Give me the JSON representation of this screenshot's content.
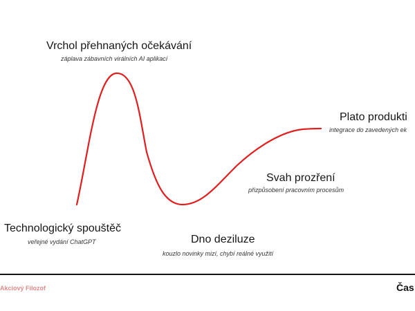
{
  "diagram": {
    "curve_color": "#e01e1e",
    "phases": {
      "peak": {
        "title": "Vrchol přehnaných očekávání",
        "subtitle": "záplava zábavních virálních AI aplikací"
      },
      "plateau": {
        "title": "Plato produkti",
        "subtitle": "integrace do zavedených ek"
      },
      "slope": {
        "title": "Svah prozření",
        "subtitle": "přizpůsobení pracovním procesům"
      },
      "trigger": {
        "title": "Technologický spouštěč",
        "subtitle": "veřejné vydání ChatGPT"
      },
      "trough": {
        "title": "Dno deziluze",
        "subtitle": "kouzlo novinky mizí, chybí reálné využití"
      }
    },
    "x_axis_label": "Čas",
    "brand": "Akciový Filozof",
    "brand_color": "#e38a8a"
  }
}
